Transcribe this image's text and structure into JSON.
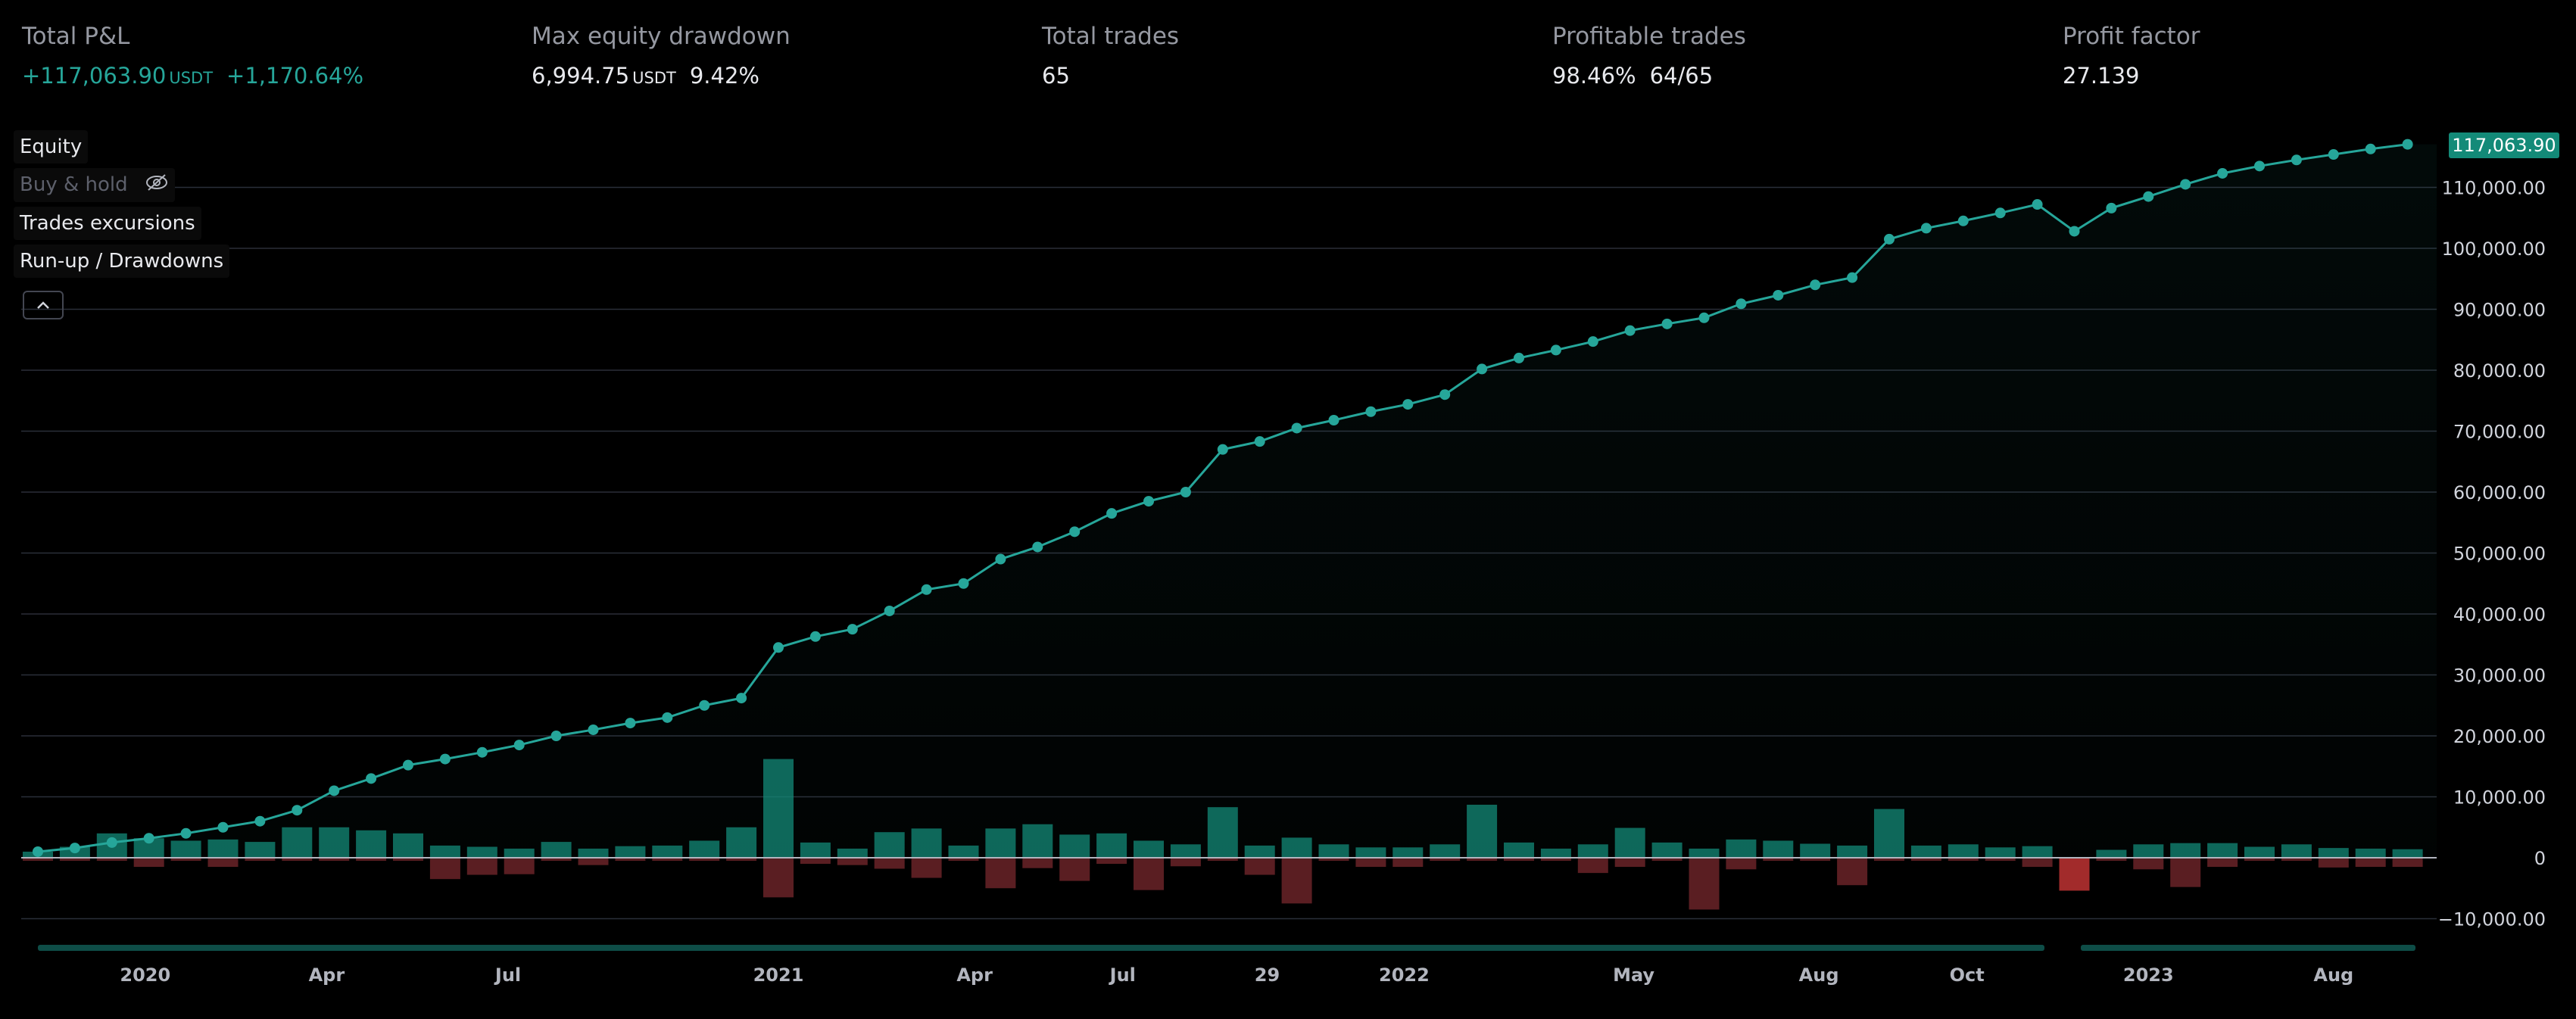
{
  "stats": {
    "total_pnl": {
      "label": "Total P&L",
      "value": "+117,063.90",
      "unit": "USDT",
      "pct": "+1,170.64%"
    },
    "max_drawdown": {
      "label": "Max equity drawdown",
      "value": "6,994.75",
      "unit": "USDT",
      "pct": "9.42%"
    },
    "total_trades": {
      "label": "Total trades",
      "value": "65"
    },
    "profitable_trades": {
      "label": "Profitable trades",
      "value": "98.46%",
      "ratio": "64/65"
    },
    "profit_factor": {
      "label": "Profit factor",
      "value": "27.139"
    }
  },
  "legend": {
    "equity": "Equity",
    "buy_hold": "Buy & hold",
    "trades_excursions": "Trades excursions",
    "runup_drawdowns": "Run-up / Drawdowns"
  },
  "colors": {
    "equity_line": "#26a69a",
    "runup_bar": "#138a78",
    "drawdown_bar": "#5a1e22",
    "drawdown_bar_highlight": "#a22b2b",
    "background": "#000000",
    "grid": "#2a2e39"
  },
  "chart_data": {
    "type": "line",
    "title": "",
    "xlabel": "",
    "ylabel": "",
    "ylim": [
      -10000,
      117063.9
    ],
    "y_ticks": [
      "110,000.00",
      "100,000.00",
      "90,000.00",
      "80,000.00",
      "70,000.00",
      "60,000.00",
      "50,000.00",
      "40,000.00",
      "30,000.00",
      "20,000.00",
      "10,000.00",
      "0",
      "−10,000.00"
    ],
    "y_tick_values": [
      110000,
      100000,
      90000,
      80000,
      70000,
      60000,
      50000,
      40000,
      30000,
      20000,
      10000,
      0,
      -10000
    ],
    "x_ticks": [
      "2020",
      "Apr",
      "Jul",
      "2021",
      "Apr",
      "Jul",
      "29",
      "2022",
      "May",
      "Aug",
      "Oct",
      "2023",
      "Aug"
    ],
    "x_tick_trade_index": [
      2.9,
      7.8,
      12.7,
      20.0,
      25.3,
      29.3,
      33.2,
      36.9,
      43.1,
      48.1,
      52.1,
      57.0,
      62.0
    ],
    "last_value_label": "117,063.90",
    "grid": true,
    "series": [
      {
        "name": "Equity",
        "values": [
          1000,
          1600,
          2500,
          3200,
          4000,
          5000,
          6000,
          7800,
          11000,
          13000,
          15200,
          16200,
          17300,
          18500,
          20000,
          21000,
          22100,
          23000,
          25000,
          26200,
          34500,
          36300,
          37500,
          40500,
          44000,
          45000,
          49000,
          51000,
          53500,
          56500,
          58500,
          60000,
          67000,
          68300,
          70500,
          71800,
          73200,
          74400,
          76000,
          80200,
          82000,
          83300,
          84700,
          86500,
          87600,
          88600,
          90900,
          92300,
          94000,
          95200,
          101500,
          103300,
          104500,
          105800,
          107200,
          102800,
          106600,
          108500,
          110500,
          112300,
          113500,
          114500,
          115400,
          116300,
          117063.9
        ]
      },
      {
        "name": "Run-ups",
        "values": [
          1000,
          1800,
          4000,
          3200,
          2800,
          3000,
          2600,
          5000,
          5000,
          4500,
          4000,
          2000,
          1800,
          1500,
          2600,
          1500,
          1900,
          2000,
          2800,
          5000,
          16200,
          2500,
          1500,
          4200,
          4800,
          2000,
          4800,
          5500,
          3800,
          4000,
          2800,
          2200,
          8300,
          2000,
          3300,
          2200,
          1700,
          1700,
          2200,
          8700,
          2500,
          1500,
          2200,
          4900,
          2500,
          1500,
          3000,
          2800,
          2300,
          2000,
          8000,
          2000,
          2200,
          1700,
          1900,
          0,
          1300,
          2200,
          2400,
          2400,
          1800,
          2200,
          1600,
          1500,
          1400
        ]
      },
      {
        "name": "Drawdowns",
        "values": [
          -500,
          -500,
          -500,
          -1500,
          -500,
          -1500,
          -500,
          -500,
          -500,
          -500,
          -500,
          -3500,
          -2800,
          -2700,
          -500,
          -1200,
          -500,
          -500,
          -500,
          -500,
          -6500,
          -1000,
          -1200,
          -1800,
          -3300,
          -500,
          -5000,
          -1700,
          -3800,
          -1000,
          -5300,
          -1400,
          -500,
          -2800,
          -7500,
          -500,
          -1500,
          -1500,
          -500,
          -500,
          -500,
          -500,
          -2500,
          -1500,
          -500,
          -8500,
          -1900,
          -500,
          -500,
          -4500,
          -500,
          -500,
          -500,
          -500,
          -1500,
          -5400,
          -500,
          -1900,
          -4800,
          -1500,
          -500,
          -500,
          -1600,
          -1500,
          -1500
        ]
      }
    ]
  }
}
